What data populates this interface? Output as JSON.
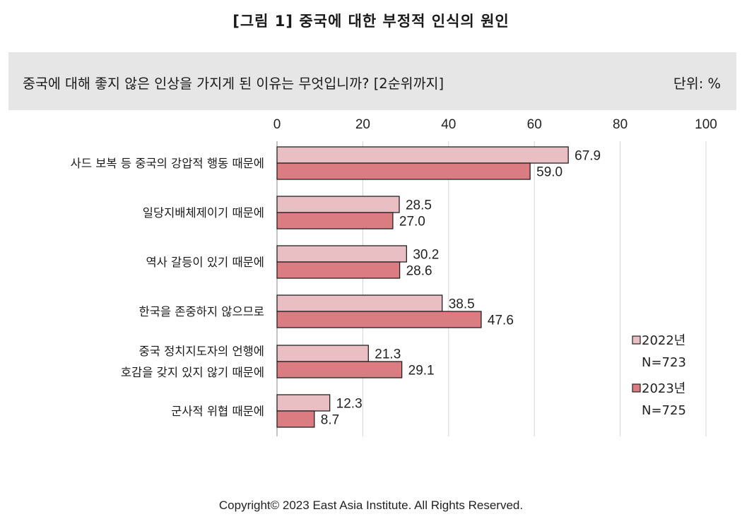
{
  "figure_title": "[그림 1] 중국에 대한 부정적 인식의 원인",
  "question": "중국에 대해 좋지 않은 인상을 가지게 된 이유는 무엇입니까? [2순위까지]",
  "unit_label": "단위: %",
  "copyright": "Copyright© 2023 East Asia Institute. All Rights Reserved.",
  "chart_data": {
    "type": "bar",
    "orientation": "horizontal",
    "title": "",
    "xlabel": "",
    "ylabel": "",
    "xlim": [
      0,
      100
    ],
    "ticks": [
      0,
      20,
      40,
      60,
      80,
      100
    ],
    "grid": true,
    "legend_position": "right",
    "categories": [
      [
        "사드 보복 등 중국의 강압적 행동 때문에"
      ],
      [
        "일당지배체제이기 때문에"
      ],
      [
        "역사 갈등이 있기 때문에"
      ],
      [
        "한국을 존중하지 않으므로"
      ],
      [
        "중국 정치지도자의 언행에",
        "호감을 갖지 있지 않기 때문에"
      ],
      [
        "군사적 위협 때문에"
      ]
    ],
    "series": [
      {
        "name": "2022년",
        "sample": "N=723",
        "color": "#eabfc3",
        "values": [
          67.9,
          28.5,
          30.2,
          38.5,
          21.3,
          12.3
        ]
      },
      {
        "name": "2023년",
        "sample": "N=725",
        "color": "#db7b82",
        "values": [
          59.0,
          27.0,
          28.6,
          47.6,
          29.1,
          8.7
        ]
      }
    ]
  }
}
